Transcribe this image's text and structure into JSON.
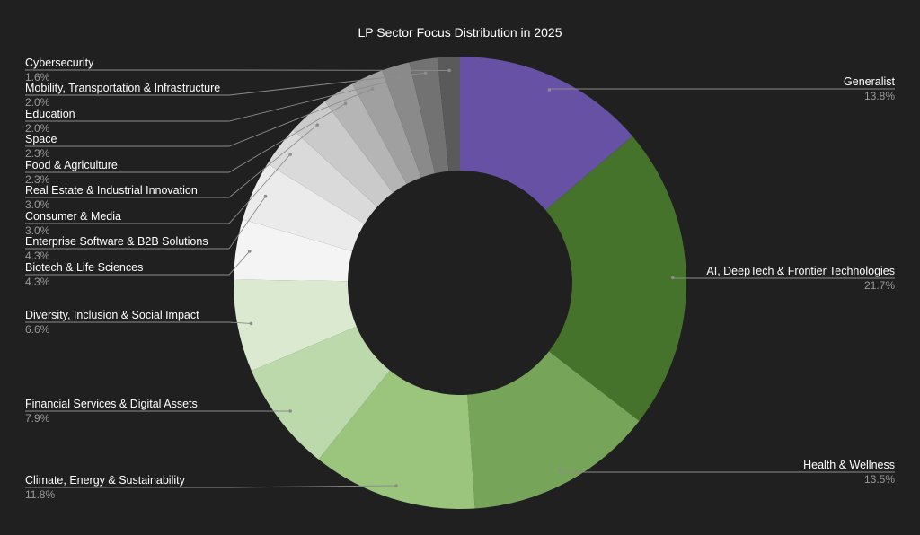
{
  "chart_data": {
    "type": "pie",
    "title": "LP Sector Focus Distribution in 2025",
    "categories": [
      "Generalist",
      "AI, DeepTech & Frontier Technologies",
      "Health & Wellness",
      "Climate, Energy & Sustainability",
      "Financial Services & Digital Assets",
      "Diversity, Inclusion & Social Impact",
      "Biotech & Life Sciences",
      "Enterprise Software & B2B Solutions",
      "Consumer & Media",
      "Real Estate & Industrial Innovation",
      "Food & Agriculture",
      "Space",
      "Education",
      "Mobility, Transportation & Infrastructure",
      "Cybersecurity"
    ],
    "values": [
      13.8,
      21.7,
      13.5,
      11.8,
      7.9,
      6.6,
      4.3,
      4.3,
      3.0,
      3.0,
      2.3,
      2.3,
      2.0,
      2.0,
      1.6
    ],
    "value_labels": [
      "13.8%",
      "21.7%",
      "13.5%",
      "11.8%",
      "7.9%",
      "6.6%",
      "4.3%",
      "4.3%",
      "3.0%",
      "3.0%",
      "2.3%",
      "2.3%",
      "2.0%",
      "2.0%",
      "1.6%"
    ],
    "colors": [
      "#6651a5",
      "#46732b",
      "#76a559",
      "#9bc47d",
      "#bcd9ab",
      "#dbe9d1",
      "#f4f4f4",
      "#ebebeb",
      "#dadada",
      "#cacaca",
      "#b5b5b5",
      "#a0a0a0",
      "#8a8a8a",
      "#727272",
      "#5a5a5a"
    ],
    "donut": true,
    "legend": "none"
  }
}
